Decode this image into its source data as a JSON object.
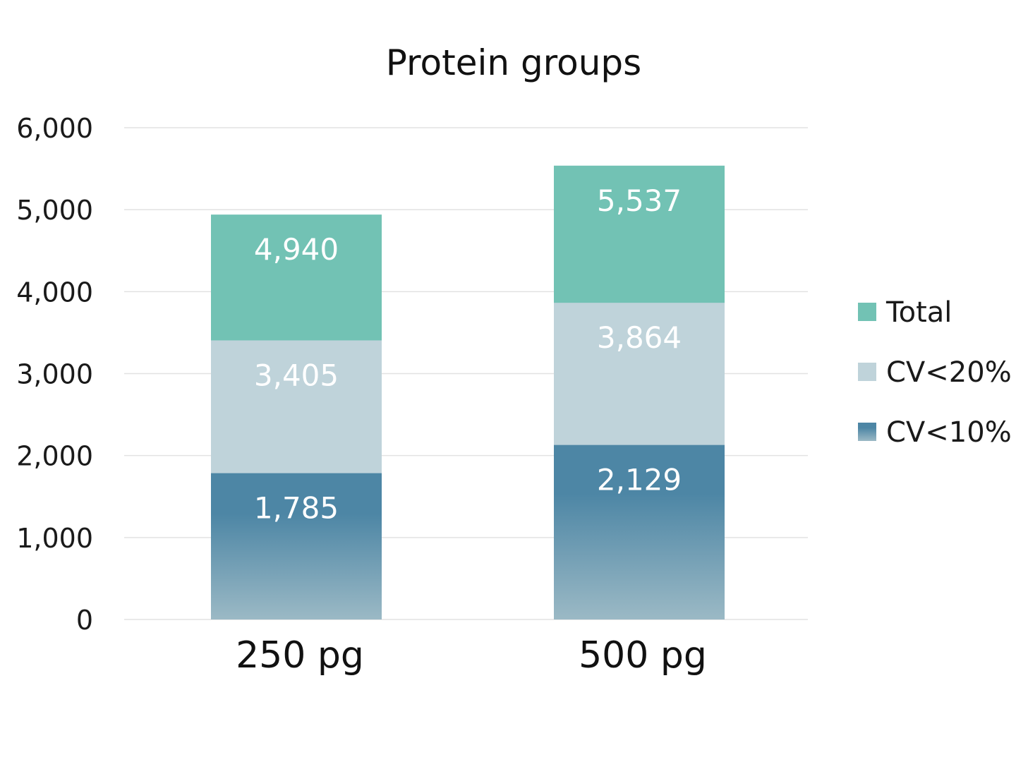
{
  "chart_data": {
    "type": "bar",
    "stacked": false,
    "overlap": true,
    "title": "Protein groups",
    "xlabel": "",
    "ylabel": "",
    "categories": [
      "250 pg",
      "500 pg"
    ],
    "ylim": [
      0,
      6000
    ],
    "yticks": [
      0,
      1000,
      2000,
      3000,
      4000,
      5000,
      6000
    ],
    "ytick_labels": [
      "0",
      "1,000",
      "2,000",
      "3,000",
      "4,000",
      "5,000",
      "6,000"
    ],
    "grid": true,
    "legend_position": "right",
    "series": [
      {
        "name": "Total",
        "values": [
          4940,
          5537
        ],
        "labels": [
          "4,940",
          "5,537"
        ],
        "color": "#72c2b4"
      },
      {
        "name": "CV<20%",
        "values": [
          3405,
          3864
        ],
        "labels": [
          "3,405",
          "3,864"
        ],
        "color": "#bfd3da"
      },
      {
        "name": "CV<10%",
        "values": [
          1785,
          2129
        ],
        "labels": [
          "1,785",
          "2,129"
        ],
        "color": "#4d86a5",
        "gradient_bottom": "#9bb9c5"
      }
    ]
  }
}
